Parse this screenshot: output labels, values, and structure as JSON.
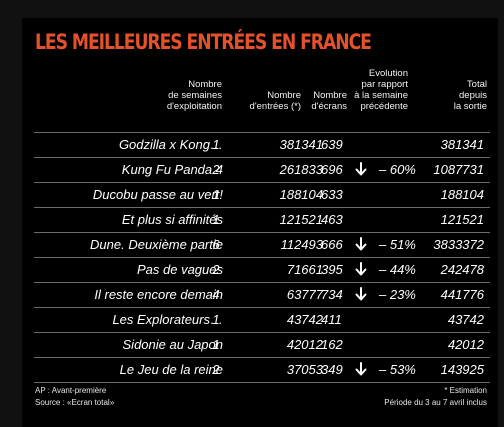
{
  "title": "LES MEILLEURES ENTRÉES EN FRANCE",
  "headers": {
    "weeks": "Nombre\nde semaines\nd'exploitation",
    "entries": "Nombre\nd'entrées (*)",
    "screens": "Nombre\nd'écrans",
    "evolution": "Evolution\npar rapport\nà la semaine\nprécédente",
    "total": "Total\ndepuis\nla sortie"
  },
  "rows": [
    {
      "title": "Godzilla x Kong…",
      "weeks": "1",
      "entries": "381341",
      "screens": "639",
      "down": false,
      "evolution": "",
      "total": "381341"
    },
    {
      "title": "Kung Fu Panda 4",
      "weeks": "2",
      "entries": "261833",
      "screens": "696",
      "down": true,
      "evolution": "– 60%",
      "total": "1087731"
    },
    {
      "title": "Ducobu passe au vert!",
      "weeks": "1",
      "entries": "188104",
      "screens": "633",
      "down": false,
      "evolution": "",
      "total": "188104"
    },
    {
      "title": "Et plus si affinités",
      "weeks": "1",
      "entries": "121521",
      "screens": "463",
      "down": false,
      "evolution": "",
      "total": "121521"
    },
    {
      "title": "Dune. Deuxième partie",
      "weeks": "6",
      "entries": "112493",
      "screens": "666",
      "down": true,
      "evolution": "– 51%",
      "total": "3833372"
    },
    {
      "title": "Pas de vagues",
      "weeks": "2",
      "entries": "71661",
      "screens": "395",
      "down": true,
      "evolution": "– 44%",
      "total": "242478"
    },
    {
      "title": "Il reste encore demain",
      "weeks": "4",
      "entries": "63777",
      "screens": "734",
      "down": true,
      "evolution": "– 23%",
      "total": "441776"
    },
    {
      "title": "Les Explorateurs…",
      "weeks": "1",
      "entries": "43742",
      "screens": "411",
      "down": false,
      "evolution": "",
      "total": "43742"
    },
    {
      "title": "Sidonie au Japon",
      "weeks": "1",
      "entries": "42012",
      "screens": "162",
      "down": false,
      "evolution": "",
      "total": "42012"
    },
    {
      "title": "Le Jeu de la reine",
      "weeks": "2",
      "entries": "37053",
      "screens": "349",
      "down": true,
      "evolution": "– 53%",
      "total": "143925"
    }
  ],
  "footer": {
    "ap_note": "AP : Avant-première",
    "source": "Source : «Ecran total»",
    "estimation": "* Estimation",
    "period": "Période du 3 au 7 avril inclus"
  },
  "colors": {
    "title": "#e5512a",
    "background": "#000000",
    "rule": "#6b6b6b"
  },
  "icons": {
    "down": "arrow-down-icon"
  }
}
